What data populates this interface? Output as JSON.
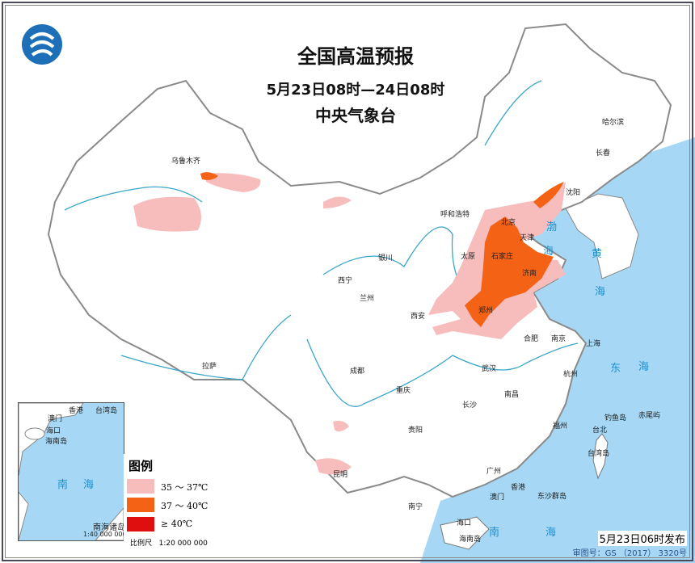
{
  "title": "全国高温预报",
  "subtitle": "5月23日08时—24日08时",
  "issuer": "中央气象台",
  "logo_icon": "cma-logo-icon",
  "colors": {
    "sea": "#a6d8f5",
    "land": "#ffffff",
    "border": "#888888",
    "river": "#3aa6c8",
    "heat_35_37": "#f7bcbc",
    "heat_37_40": "#f46315",
    "heat_40": "#e00f0f"
  },
  "cities": [
    {
      "name": "乌鲁木齐"
    },
    {
      "name": "哈尔滨"
    },
    {
      "name": "长春"
    },
    {
      "name": "沈阳"
    },
    {
      "name": "呼和浩特"
    },
    {
      "name": "北京"
    },
    {
      "name": "天津"
    },
    {
      "name": "石家庄"
    },
    {
      "name": "太原"
    },
    {
      "name": "济南"
    },
    {
      "name": "银川"
    },
    {
      "name": "西宁"
    },
    {
      "name": "兰州"
    },
    {
      "name": "郑州"
    },
    {
      "name": "西安"
    },
    {
      "name": "合肥"
    },
    {
      "name": "南京"
    },
    {
      "name": "上海"
    },
    {
      "name": "杭州"
    },
    {
      "name": "武汉"
    },
    {
      "name": "成都"
    },
    {
      "name": "重庆"
    },
    {
      "name": "长沙"
    },
    {
      "name": "南昌"
    },
    {
      "name": "贵阳"
    },
    {
      "name": "福州"
    },
    {
      "name": "台北"
    },
    {
      "name": "台湾岛"
    },
    {
      "name": "昆明"
    },
    {
      "name": "南宁"
    },
    {
      "name": "广州"
    },
    {
      "name": "香港"
    },
    {
      "name": "澳门"
    },
    {
      "name": "海口"
    },
    {
      "name": "海南岛"
    },
    {
      "name": "拉萨"
    },
    {
      "name": "钓鱼岛"
    },
    {
      "name": "赤尾屿"
    },
    {
      "name": "东沙群岛"
    }
  ],
  "seas": [
    "渤",
    "海",
    "黄",
    "海",
    "东",
    "海",
    "南",
    "海"
  ],
  "inset": {
    "labels": [
      "香港",
      "澳门",
      "台湾岛",
      "海口",
      "海南岛",
      "南",
      "海"
    ],
    "title": "南海诸岛",
    "scale": "1:40 000 000"
  },
  "legend": {
    "title": "图例",
    "items": [
      {
        "label": "35 ～ 37℃",
        "color": "#f7bcbc"
      },
      {
        "label": "37 ～ 40℃",
        "color": "#f46315"
      },
      {
        "label": "≥ 40℃",
        "color": "#e00f0f"
      }
    ],
    "scale_label": "比例尺",
    "scale_value": "1:20 000 000"
  },
  "published": "5月23日06时发布",
  "review_number": "审图号：GS （2017） 3320号"
}
